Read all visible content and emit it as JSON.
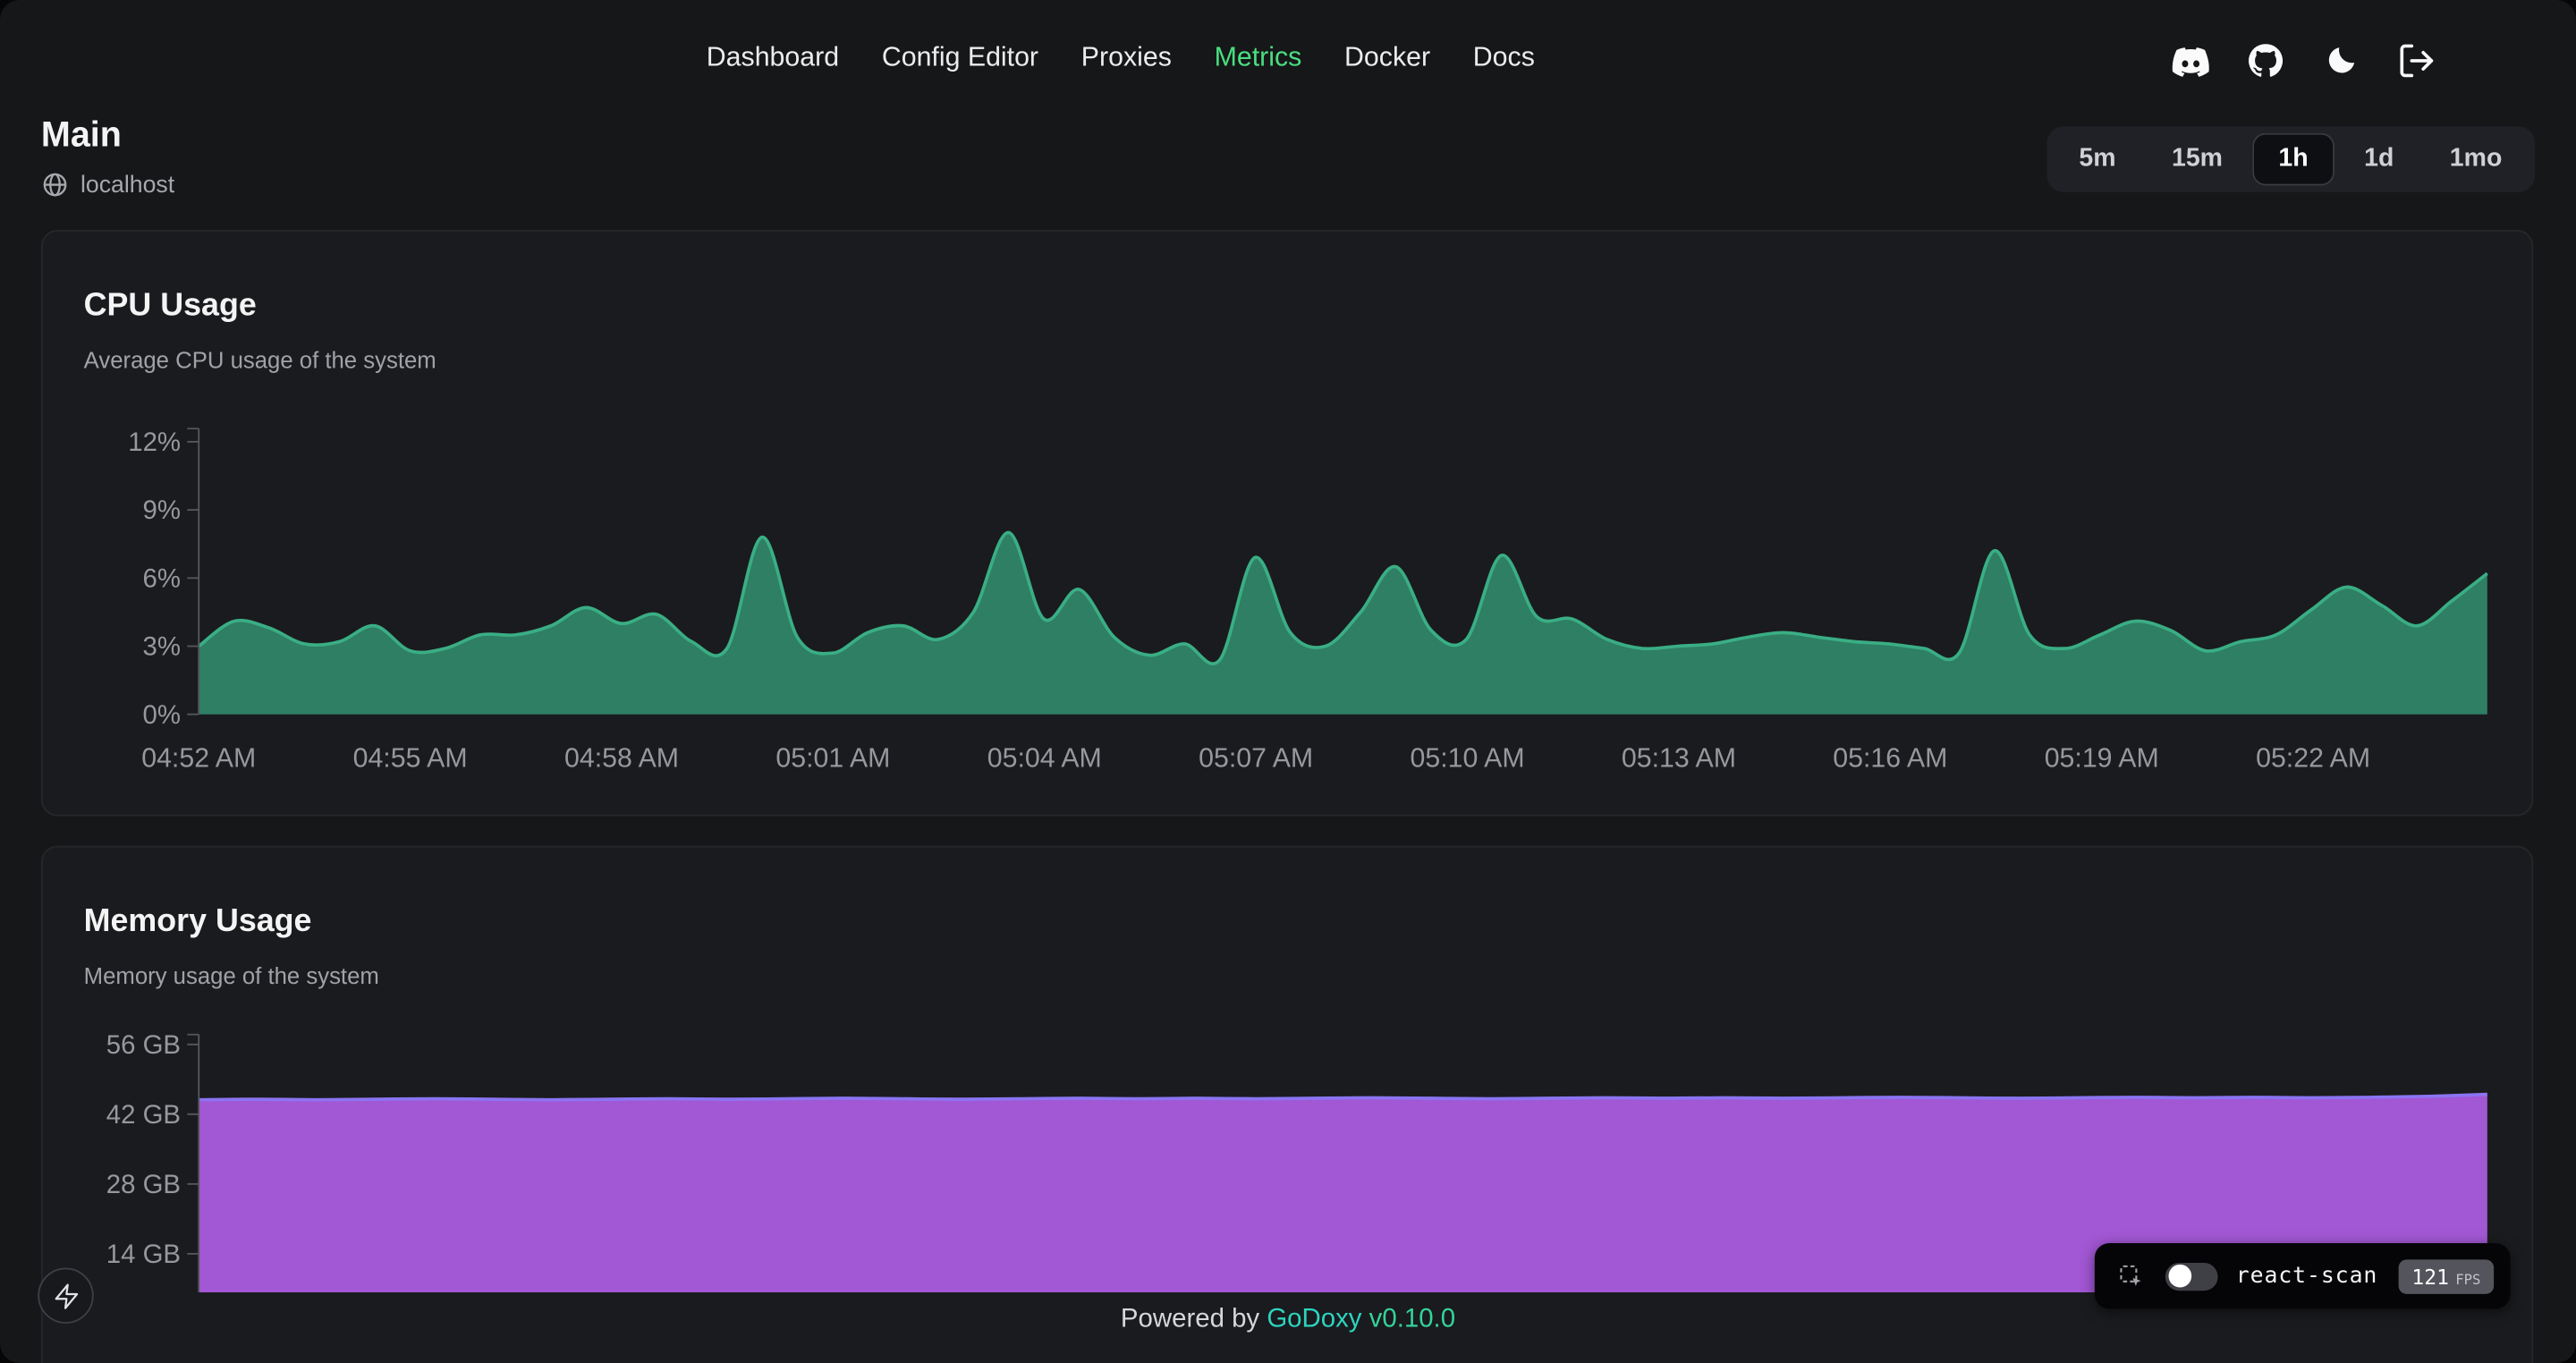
{
  "nav": {
    "items": [
      {
        "label": "Dashboard",
        "active": false
      },
      {
        "label": "Config Editor",
        "active": false
      },
      {
        "label": "Proxies",
        "active": false
      },
      {
        "label": "Metrics",
        "active": true
      },
      {
        "label": "Docker",
        "active": false
      },
      {
        "label": "Docs",
        "active": false
      }
    ],
    "icons": [
      "discord",
      "github",
      "dark-mode",
      "logout"
    ]
  },
  "site": {
    "name": "Main",
    "host": "localhost"
  },
  "time_range": {
    "options": [
      "5m",
      "15m",
      "1h",
      "1d",
      "1mo"
    ],
    "selected": "1h"
  },
  "chart_data": [
    {
      "type": "area",
      "title": "CPU Usage",
      "subtitle": "Average CPU usage of the system",
      "unit": "%",
      "ylim": [
        0,
        12
      ],
      "grid": false,
      "y_ticks": [
        {
          "label": "0%",
          "value": 0
        },
        {
          "label": "3%",
          "value": 3
        },
        {
          "label": "6%",
          "value": 6
        },
        {
          "label": "9%",
          "value": 9
        },
        {
          "label": "12%",
          "value": 12
        }
      ],
      "x_ticks": [
        "04:52 AM",
        "04:55 AM",
        "04:58 AM",
        "05:01 AM",
        "05:04 AM",
        "05:07 AM",
        "05:10 AM",
        "05:13 AM",
        "05:16 AM",
        "05:19 AM",
        "05:22 AM"
      ],
      "values": [
        3.0,
        4.1,
        3.8,
        3.1,
        3.2,
        3.9,
        2.8,
        2.9,
        3.5,
        3.5,
        3.9,
        4.7,
        4.0,
        4.4,
        3.2,
        2.9,
        7.8,
        3.4,
        2.7,
        3.6,
        3.9,
        3.3,
        4.5,
        8.0,
        4.2,
        5.5,
        3.4,
        2.6,
        3.1,
        2.4,
        6.9,
        3.6,
        3.0,
        4.5,
        6.5,
        3.7,
        3.3,
        7.0,
        4.3,
        4.2,
        3.3,
        2.9,
        3.0,
        3.1,
        3.4,
        3.6,
        3.4,
        3.2,
        3.1,
        2.9,
        2.7,
        7.2,
        3.5,
        2.9,
        3.5,
        4.1,
        3.7,
        2.8,
        3.2,
        3.5,
        4.6,
        5.6,
        4.8,
        3.9,
        5.0,
        6.2
      ],
      "fill": "#2e7f64",
      "stroke": "#3aae84"
    },
    {
      "type": "area",
      "title": "Memory Usage",
      "subtitle": "Memory usage of the system",
      "unit": "GB",
      "ylim": [
        0,
        56
      ],
      "grid": false,
      "y_ticks": [
        {
          "label": "14 GB",
          "value": 14
        },
        {
          "label": "28 GB",
          "value": 28
        },
        {
          "label": "42 GB",
          "value": 42
        },
        {
          "label": "56 GB",
          "value": 56
        }
      ],
      "x_ticks": [],
      "values": [
        44.9,
        45.0,
        44.9,
        45.0,
        45.1,
        45.0,
        44.9,
        45.0,
        45.1,
        45.0,
        45.1,
        45.2,
        45.1,
        45.0,
        45.1,
        45.2,
        45.1,
        45.2,
        45.1,
        45.2,
        45.3,
        45.2,
        45.1,
        45.2,
        45.3,
        45.2,
        45.3,
        45.2,
        45.3,
        45.4,
        45.3,
        45.2,
        45.3,
        45.4,
        45.3,
        45.4,
        45.3,
        45.4,
        45.6,
        46.0
      ],
      "fill": "#a257d4",
      "stroke": "#8b74f2"
    }
  ],
  "footer": {
    "powered_by": "Powered by",
    "brand": "GoDoxy",
    "version": "v0.10.0"
  },
  "react_scan": {
    "label": "react-scan",
    "fps": "121",
    "fps_unit": "FPS"
  }
}
